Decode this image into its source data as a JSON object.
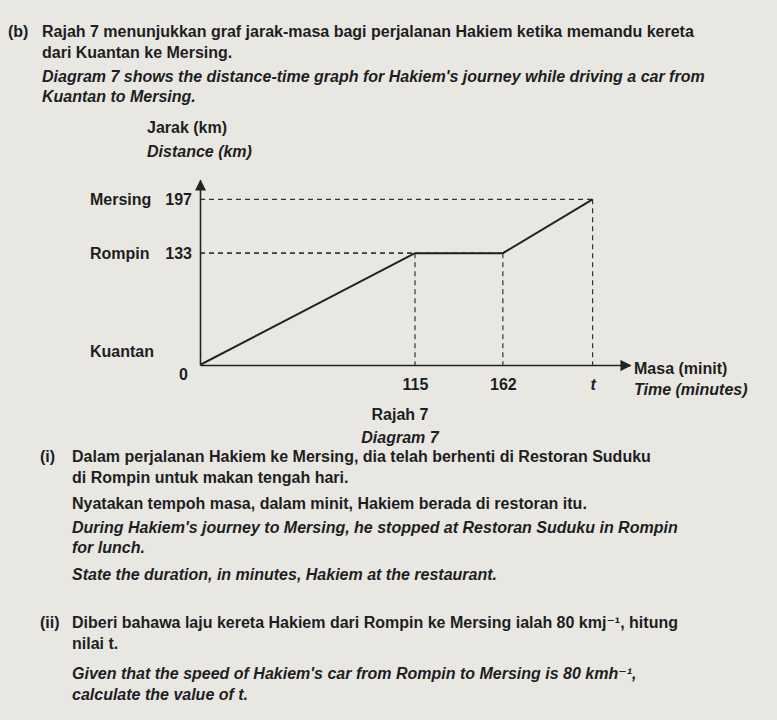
{
  "label": "(b)",
  "intro": {
    "ms": [
      "Rajah 7 menunjukkan graf jarak-masa bagi perjalanan Hakiem ketika memandu kereta",
      "dari Kuantan ke Mersing."
    ],
    "en": [
      "Diagram 7 shows the distance-time graph for Hakiem's journey while driving a car from",
      "Kuantan to Mersing."
    ]
  },
  "chart_data": {
    "type": "line",
    "title": "Rajah 7",
    "subtitle": "Diagram 7",
    "ylabel": [
      "Jarak (km)",
      "Distance (km)"
    ],
    "xlabel": [
      "Masa (minit)",
      "Time (minutes)"
    ],
    "x": [
      0,
      115,
      162,
      210
    ],
    "values": [
      0,
      133,
      133,
      197
    ],
    "xlim": [
      0,
      230
    ],
    "ylim": [
      0,
      220
    ],
    "xticks": [
      115,
      162,
      {
        "value": 210,
        "label": "t"
      }
    ],
    "yticks": [
      0,
      133,
      197
    ],
    "y_place_labels": [
      {
        "value": 0,
        "label": "Kuantan"
      },
      {
        "value": 133,
        "label": "Rompin"
      },
      {
        "value": 197,
        "label": "Mersing"
      }
    ],
    "color": "#222222",
    "line_style": "solid",
    "grid": false
  },
  "parts": [
    {
      "label": "(i)",
      "ms": [
        "Dalam perjalanan Hakiem ke Mersing, dia telah berhenti di Restoran Suduku",
        "di Rompin untuk makan tengah hari.",
        "Nyatakan tempoh masa, dalam minit, Hakiem berada di restoran itu."
      ],
      "en": [
        "During Hakiem's journey to Mersing, he stopped at Restoran Suduku in Rompin",
        "for lunch.",
        "State the duration, in minutes, Hakiem at the restaurant."
      ]
    },
    {
      "label": "(ii)",
      "ms": [
        "Diberi bahawa laju kereta Hakiem dari Rompin ke Mersing ialah 80 kmj⁻¹, hitung",
        "nilai t."
      ],
      "en": [
        "Given that the speed of Hakiem's car from Rompin to Mersing is 80 kmh⁻¹,",
        "calculate the value of t."
      ]
    }
  ]
}
